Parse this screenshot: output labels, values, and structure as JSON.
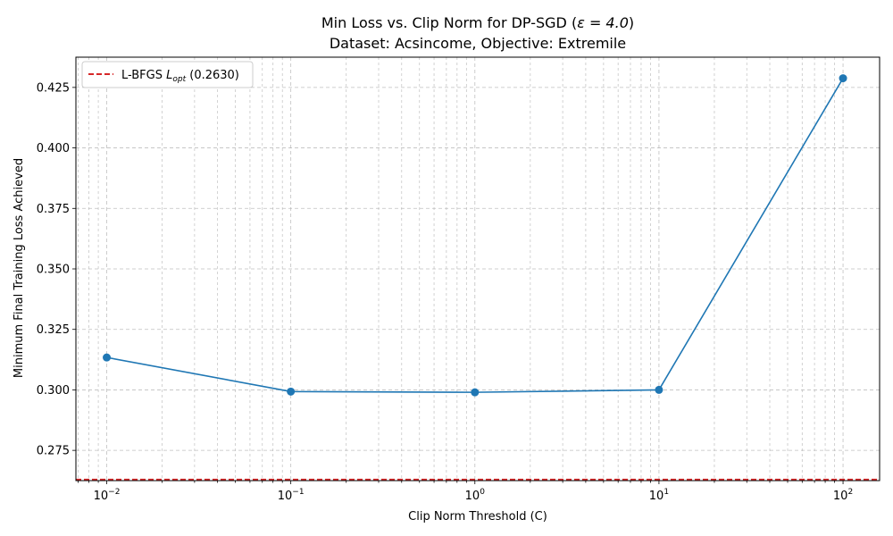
{
  "chart_data": {
    "type": "line",
    "title_line1": "Min Loss vs. Clip Norm for DP-SGD (",
    "title_epsilon": "ε = 4.0",
    "title_line1_end": ")",
    "title_line2": "Dataset: Acsincome, Objective: Extremile",
    "xlabel": "Clip Norm Threshold (C)",
    "ylabel": "Minimum Final Training Loss Achieved",
    "xscale": "log",
    "xlim": [
      0.0068,
      158
    ],
    "ylim": [
      0.2625,
      0.4375
    ],
    "x_ticks": [
      {
        "value": 0.01,
        "base": "10",
        "exp": "−2"
      },
      {
        "value": 0.1,
        "base": "10",
        "exp": "−1"
      },
      {
        "value": 1,
        "base": "10",
        "exp": "0"
      },
      {
        "value": 10,
        "base": "10",
        "exp": "1"
      },
      {
        "value": 100,
        "base": "10",
        "exp": "2"
      }
    ],
    "y_ticks": [
      "0.275",
      "0.300",
      "0.325",
      "0.350",
      "0.375",
      "0.400",
      "0.425"
    ],
    "grid": true,
    "legend_position": "top-left",
    "series": [
      {
        "x": [
          0.01,
          0.1,
          1,
          10,
          100
        ],
        "y": [
          0.3134,
          0.2993,
          0.299,
          0.3,
          0.4288
        ],
        "color": "#1f77b4",
        "marker": "circle"
      }
    ],
    "reference_line": {
      "label_prefix": "L-BFGS ",
      "label_symbol": "L",
      "label_subscript": "opt",
      "label_suffix": " (0.2630)",
      "y": 0.263,
      "color": "#d62728",
      "style": "dashed"
    }
  }
}
